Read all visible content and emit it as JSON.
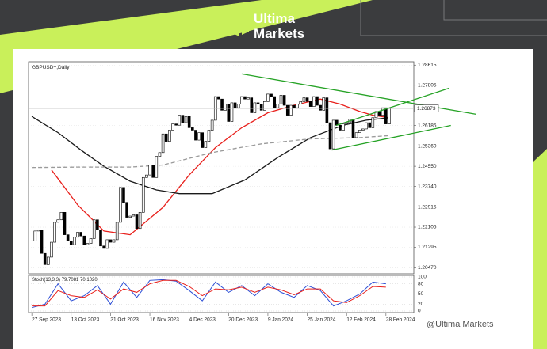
{
  "logo": {
    "line1": "Ultima",
    "line2": "Markets"
  },
  "watermark": "@Ultima Markets",
  "chart_data": {
    "type": "candlestick",
    "title": "GBPUSD+,Daily",
    "categories": [
      "27 Sep 2023",
      null,
      null,
      null,
      null,
      null,
      null,
      null,
      null,
      null,
      null,
      null,
      "13 Oct 2023",
      null,
      null,
      null,
      null,
      null,
      null,
      null,
      null,
      null,
      null,
      null,
      "31 Oct 2023",
      null,
      null,
      null,
      null,
      null,
      null,
      null,
      null,
      null,
      null,
      null,
      "16 Nov 2023",
      null,
      null,
      null,
      null,
      null,
      null,
      null,
      null,
      null,
      null,
      null,
      "4 Dec 2023",
      null,
      null,
      null,
      null,
      null,
      null,
      null,
      null,
      null,
      null,
      null,
      "20 Dec 2023",
      null,
      null,
      null,
      null,
      null,
      null,
      null,
      null,
      null,
      null,
      null,
      "9 Jan 2024",
      null,
      null,
      null,
      null,
      null,
      null,
      null,
      null,
      null,
      null,
      null,
      "25 Jan 2024",
      null,
      null,
      null,
      null,
      null,
      null,
      null,
      null,
      null,
      null,
      null,
      "12 Feb 2024",
      null,
      null,
      null,
      null,
      null,
      null,
      null,
      null,
      null,
      null,
      null,
      "28 Feb 2024",
      null
    ],
    "values": [
      1.2155,
      1.2195,
      1.22,
      1.2105,
      1.206,
      1.209,
      1.215,
      1.223,
      1.224,
      1.227,
      1.218,
      1.2155,
      1.214,
      1.217,
      1.219,
      1.2175,
      1.214,
      1.2145,
      1.2165,
      1.224,
      1.22,
      1.2135,
      1.2125,
      1.216,
      1.215,
      1.216,
      1.223,
      1.237,
      1.231,
      1.225,
      1.2255,
      1.226,
      1.2205,
      1.227,
      1.241,
      1.242,
      1.246,
      1.241,
      1.2495,
      1.251,
      1.2585,
      1.2555,
      1.26,
      1.2625,
      1.262,
      1.266,
      1.263,
      1.2655,
      1.261,
      1.26,
      1.256,
      1.259,
      1.253,
      1.2555,
      1.26,
      1.264,
      1.2735,
      1.2725,
      1.268,
      1.2705,
      1.2635,
      1.271,
      1.269,
      1.2705,
      1.2735,
      1.2725,
      1.273,
      1.267,
      1.271,
      1.2705,
      1.268,
      1.2715,
      1.2745,
      1.2735,
      1.269,
      1.2705,
      1.274,
      1.27,
      1.266,
      1.27,
      1.269,
      1.2705,
      1.2715,
      1.273,
      1.2715,
      1.2695,
      1.2735,
      1.27,
      1.268,
      1.273,
      1.263,
      1.2525,
      1.264,
      1.262,
      1.26,
      1.2625,
      1.263,
      1.2645,
      1.257,
      1.259,
      1.26,
      1.2605,
      1.263,
      1.261,
      1.265,
      1.2675,
      1.266,
      1.269,
      1.2625,
      1.26873
    ],
    "bull_color": "#ffffff",
    "bear_color": "#000000",
    "xlim": [
      -1,
      116.5
    ],
    "ylim": [
      1.2023,
      1.2875
    ],
    "yticks": [
      1.28615,
      1.27805,
      1.26185,
      {
        "value": 1.2536,
        "label": "1.25360"
      },
      {
        "value": 1.2455,
        "label": "1.24550"
      },
      {
        "value": 1.2374,
        "label": "1.23740"
      },
      1.22915,
      1.22105,
      1.21295,
      {
        "value": 1.2047,
        "label": "1.20470"
      }
    ],
    "grid": true,
    "series": [
      {
        "color": "#e8201c",
        "dashed": false,
        "x": [
          6,
          14,
          22,
          30,
          40,
          48,
          56,
          64,
          72,
          80,
          88,
          94,
          100,
          104,
          109
        ],
        "values": [
          1.244,
          1.23,
          1.2195,
          1.218,
          1.229,
          1.242,
          1.253,
          1.261,
          1.267,
          1.27,
          1.2725,
          1.2705,
          1.2675,
          1.266,
          1.265
        ]
      },
      {
        "color": "#1a1a1a",
        "dashed": false,
        "x": [
          0,
          8,
          15,
          22,
          30,
          38,
          45,
          55,
          65,
          75,
          85,
          95,
          102,
          109
        ],
        "values": [
          1.2655,
          1.259,
          1.252,
          1.2455,
          1.2395,
          1.236,
          1.2345,
          1.2345,
          1.24,
          1.249,
          1.257,
          1.262,
          1.264,
          1.265
        ]
      },
      {
        "color": "#9a9a9a",
        "dashed": true,
        "x": [
          0,
          15,
          30,
          40,
          55,
          70,
          85,
          100,
          109
        ],
        "values": [
          1.245,
          1.2452,
          1.2452,
          1.246,
          1.251,
          1.2545,
          1.2565,
          1.257,
          1.2578
        ]
      }
    ],
    "trendlines": [
      {
        "color": "#27a327",
        "x": [
          64,
          135.5
        ],
        "values": [
          1.2826,
          1.2664
        ]
      },
      {
        "color": "#27a327",
        "x": [
          91.5,
          127.8
        ],
        "values": [
          1.252,
          1.2619
        ]
      },
      {
        "color": "#27a327",
        "x": [
          92.8,
          127.3
        ],
        "values": [
          1.2619,
          1.2769
        ]
      }
    ],
    "stochastic": {
      "title": "Stoch(13,3,3) 79.7081 70.1020",
      "ylim": [
        0,
        100
      ],
      "yticks": [
        100,
        80,
        50,
        20,
        0
      ],
      "x": [
        0,
        4,
        8,
        12,
        16,
        20,
        24,
        28,
        32,
        36,
        40,
        44,
        48,
        52,
        56,
        60,
        64,
        68,
        72,
        76,
        80,
        84,
        88,
        92,
        96,
        100,
        104,
        108
      ],
      "series": [
        {
          "color": "#2d4fd6",
          "values": [
            10,
            20,
            80,
            30,
            45,
            75,
            20,
            85,
            40,
            90,
            92,
            88,
            60,
            30,
            85,
            55,
            75,
            45,
            80,
            55,
            40,
            75,
            60,
            15,
            30,
            50,
            85,
            80
          ]
        },
        {
          "color": "#e8201c",
          "values": [
            15,
            15,
            60,
            45,
            40,
            62,
            35,
            65,
            55,
            80,
            90,
            90,
            72,
            45,
            65,
            62,
            70,
            55,
            70,
            62,
            48,
            65,
            65,
            30,
            25,
            45,
            72,
            70
          ]
        }
      ]
    }
  }
}
